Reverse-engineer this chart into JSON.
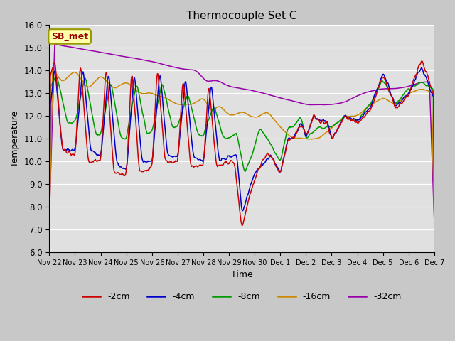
{
  "title": "Thermocouple Set C",
  "xlabel": "Time",
  "ylabel": "Temperature",
  "ylim": [
    6.0,
    16.0
  ],
  "yticks": [
    6.0,
    7.0,
    8.0,
    9.0,
    10.0,
    11.0,
    12.0,
    13.0,
    14.0,
    15.0,
    16.0
  ],
  "fig_bg_color": "#c8c8c8",
  "plot_bg_color": "#e0e0e0",
  "grid_color": "#ffffff",
  "legend_labels": [
    "-2cm",
    "-4cm",
    "-8cm",
    "-16cm",
    "-32cm"
  ],
  "legend_colors": [
    "#cc0000",
    "#0000cc",
    "#009900",
    "#cc8800",
    "#9900aa"
  ],
  "annotation_text": "SB_met",
  "annotation_color": "#990000",
  "annotation_bg": "#ffffaa",
  "annotation_edge": "#999900",
  "tick_labels": [
    "Nov 22",
    "Nov 23",
    "Nov 24",
    "Nov 25",
    "Nov 26",
    "Nov 27",
    "Nov 28",
    "Nov 29",
    "Nov 30",
    "Dec 1",
    "Dec 2",
    "Dec 3",
    "Dec 4",
    "Dec 5",
    "Dec 6",
    "Dec 7"
  ],
  "n_points": 720
}
